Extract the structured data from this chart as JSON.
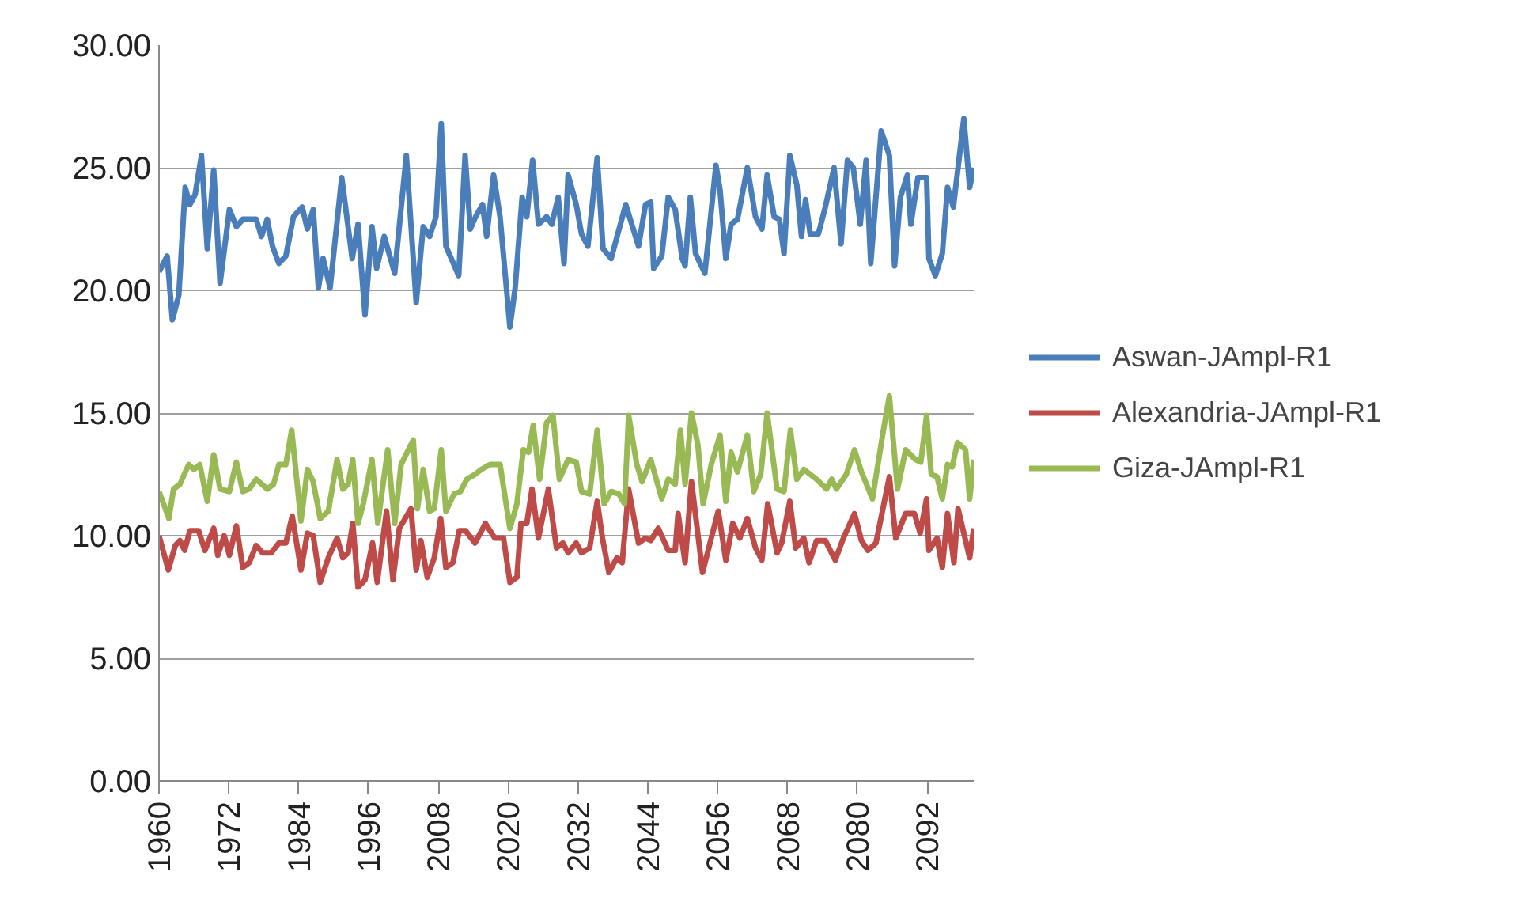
{
  "chart_data": {
    "type": "line",
    "xlim": [
      1960,
      2100
    ],
    "ylim": [
      0,
      30
    ],
    "xticks": [
      1960,
      1972,
      1984,
      1996,
      2008,
      2020,
      2032,
      2044,
      2056,
      2068,
      2080,
      2092
    ],
    "yticks": [
      {
        "value": 0,
        "label": "0.00"
      },
      {
        "value": 5,
        "label": "5.00"
      },
      {
        "value": 10,
        "label": "10.00"
      },
      {
        "value": 15,
        "label": "15.00"
      },
      {
        "value": 20,
        "label": "20.00"
      },
      {
        "value": 25,
        "label": "25.00"
      },
      {
        "value": 30,
        "label": "30.00"
      }
    ],
    "grid": "y",
    "legend": "right",
    "line_style": "solid",
    "marker": "none",
    "series": [
      {
        "name": "Aswan-JAmpl-R1",
        "color": "#4a7ebb",
        "x": [
          1960,
          1961.4,
          1962.3,
          1963.4,
          1964.5,
          1965.3,
          1966.2,
          1967.3,
          1968.3,
          1969.4,
          1970.5,
          1972.1,
          1973.3,
          1974.4,
          1976.7,
          1977.6,
          1978.6,
          1979.5,
          1980.6,
          1981.8,
          1983.1,
          1984.6,
          1985.5,
          1986.5,
          1987.4,
          1988.2,
          1989.4,
          1991.4,
          1993.2,
          1994.2,
          1995.4,
          1996.6,
          1997.4,
          1998.7,
          2000.5,
          2002.5,
          2004.2,
          2005.4,
          2006.5,
          2007.6,
          2008.5,
          2009.3,
          2011.5,
          2012.6,
          2013.5,
          2014.4,
          2015.6,
          2016.3,
          2017.5,
          2018.6,
          2020.3,
          2021.2,
          2022.4,
          2023.2,
          2024.2,
          2025.2,
          2026.6,
          2027.5,
          2028.6,
          2029.6,
          2030.3,
          2031.7,
          2032.6,
          2033.7,
          2035.3,
          2036.3,
          2037.7,
          2040.2,
          2042.4,
          2043.6,
          2044.5,
          2045.0,
          2046.4,
          2047.5,
          2048.7,
          2049.9,
          2050.4,
          2051.3,
          2052.2,
          2053.8,
          2055.7,
          2056.4,
          2057.4,
          2058.3,
          2059.4,
          2061.1,
          2062.5,
          2063.6,
          2064.5,
          2065.7,
          2066.6,
          2067.4,
          2068.4,
          2069.6,
          2070.4,
          2071.1,
          2071.9,
          2073.3,
          2074.5,
          2076.0,
          2077.2,
          2078.3,
          2079.3,
          2080.5,
          2081.5,
          2082.3,
          2084.1,
          2085.5,
          2086.4,
          2087.4,
          2088.6,
          2089.2,
          2090.4,
          2091.9,
          2092.3,
          2093.4,
          2094.6,
          2095.5,
          2096.5,
          2098.3,
          2099.3,
          2100
        ],
        "values": [
          20.75,
          21.4,
          18.8,
          19.8,
          24.2,
          23.5,
          23.9,
          25.5,
          21.7,
          24.9,
          20.3,
          23.3,
          22.6,
          22.9,
          22.9,
          22.2,
          22.9,
          21.8,
          21.1,
          21.4,
          23.0,
          23.4,
          22.5,
          23.3,
          20.1,
          21.3,
          20.1,
          24.6,
          21.3,
          22.7,
          19.0,
          22.6,
          20.9,
          22.2,
          20.7,
          25.5,
          19.5,
          22.6,
          22.2,
          23.0,
          26.8,
          21.8,
          20.6,
          25.5,
          22.5,
          23.0,
          23.5,
          22.2,
          24.7,
          23.0,
          18.5,
          20.1,
          23.8,
          23.0,
          25.3,
          22.7,
          23.0,
          22.7,
          23.8,
          21.1,
          24.7,
          23.5,
          22.3,
          21.8,
          25.4,
          21.7,
          21.3,
          23.5,
          21.8,
          23.5,
          23.6,
          20.9,
          21.4,
          23.8,
          23.3,
          21.3,
          21.0,
          23.8,
          21.5,
          20.7,
          25.1,
          24.1,
          21.3,
          22.7,
          22.9,
          25.0,
          23.0,
          22.5,
          24.7,
          23.0,
          22.9,
          21.5,
          25.5,
          24.3,
          22.2,
          23.7,
          22.3,
          22.3,
          23.4,
          25.0,
          21.9,
          25.3,
          25.0,
          22.7,
          25.3,
          21.1,
          26.5,
          25.5,
          21.0,
          23.8,
          24.7,
          22.7,
          24.6,
          24.6,
          21.3,
          20.6,
          21.5,
          24.2,
          23.4,
          27.0,
          24.2,
          25.0
        ]
      },
      {
        "name": "Alexandria-JAmpl-R1",
        "color": "#be4b48",
        "x": [
          1960,
          1961.6,
          1962.8,
          1963.6,
          1964.4,
          1965.3,
          1966.8,
          1967.9,
          1969.4,
          1970.1,
          1971.2,
          1972.1,
          1973.3,
          1974.4,
          1975.5,
          1976.7,
          1977.8,
          1979.3,
          1980.6,
          1981.8,
          1982.9,
          1984.4,
          1985.5,
          1986.5,
          1987.7,
          1989.1,
          1990.6,
          1991.6,
          1992.5,
          1993.3,
          1994.2,
          1995.4,
          1996.7,
          1997.5,
          1999.1,
          2000.2,
          2001.3,
          2003.3,
          2004.2,
          2005.0,
          2006.1,
          2007.3,
          2008.4,
          2009.3,
          2010.5,
          2011.6,
          2012.7,
          2014.3,
          2016.1,
          2017.7,
          2019.2,
          2020.3,
          2021.5,
          2022.2,
          2023.2,
          2024.1,
          2025.2,
          2026.9,
          2028.3,
          2029.4,
          2030.3,
          2031.7,
          2032.6,
          2034.0,
          2035.3,
          2036.2,
          2037.3,
          2038.7,
          2039.6,
          2040.7,
          2042.4,
          2043.6,
          2044.5,
          2045.8,
          2047.5,
          2048.7,
          2049.2,
          2050.4,
          2051.5,
          2053.4,
          2054.9,
          2056.1,
          2057.4,
          2058.6,
          2059.8,
          2061.1,
          2062.5,
          2063.6,
          2064.6,
          2066.2,
          2067.0,
          2068.4,
          2069.4,
          2070.8,
          2071.7,
          2073.0,
          2074.5,
          2076.2,
          2077.6,
          2079.5,
          2080.7,
          2081.8,
          2083.2,
          2085.5,
          2086.6,
          2088.3,
          2089.8,
          2090.8,
          2091.9,
          2092.3,
          2093.7,
          2094.6,
          2095.5,
          2096.6,
          2097.3,
          2099.3,
          2100
        ],
        "values": [
          10.0,
          8.6,
          9.6,
          9.8,
          9.4,
          10.2,
          10.2,
          9.4,
          10.3,
          9.2,
          10.0,
          9.2,
          10.4,
          8.7,
          8.9,
          9.6,
          9.3,
          9.3,
          9.7,
          9.7,
          10.8,
          8.6,
          10.1,
          10.0,
          8.1,
          9.1,
          9.9,
          9.1,
          9.3,
          10.5,
          7.9,
          8.2,
          9.7,
          8.1,
          11.0,
          8.2,
          10.3,
          11.1,
          8.6,
          9.8,
          8.3,
          9.1,
          10.7,
          8.7,
          8.9,
          10.2,
          10.2,
          9.7,
          10.5,
          9.9,
          9.9,
          8.1,
          8.3,
          10.5,
          10.5,
          11.9,
          9.9,
          11.9,
          9.5,
          9.7,
          9.3,
          9.7,
          9.3,
          9.5,
          11.4,
          9.9,
          8.5,
          9.1,
          8.9,
          11.9,
          9.7,
          9.9,
          9.8,
          10.3,
          9.4,
          9.4,
          10.9,
          8.9,
          12.2,
          8.5,
          9.9,
          11.0,
          9.0,
          10.5,
          9.9,
          10.7,
          9.5,
          9.0,
          11.3,
          9.3,
          9.7,
          11.4,
          9.5,
          9.9,
          8.9,
          9.8,
          9.8,
          9.0,
          9.9,
          10.9,
          9.8,
          9.4,
          9.7,
          12.4,
          9.9,
          10.9,
          10.9,
          10.1,
          11.5,
          9.4,
          9.9,
          8.7,
          10.9,
          8.9,
          11.1,
          9.1,
          10.3
        ]
      },
      {
        "name": "Giza-JAmpl-R1",
        "color": "#98b954",
        "x": [
          1960,
          1961.7,
          1962.5,
          1963.6,
          1965.1,
          1966.0,
          1967.0,
          1968.3,
          1969.4,
          1970.5,
          1972.1,
          1973.3,
          1974.4,
          1975.5,
          1976.7,
          1978.6,
          1979.7,
          1980.6,
          1981.8,
          1982.8,
          1984.4,
          1985.5,
          1986.5,
          1987.7,
          1989.1,
          1990.6,
          1991.6,
          1992.5,
          1993.3,
          1994.2,
          1995.1,
          1996.6,
          1997.6,
          1999.3,
          2000.5,
          2001.6,
          2003.7,
          2004.4,
          2005.4,
          2006.5,
          2007.3,
          2008.5,
          2009.3,
          2010.7,
          2011.8,
          2012.9,
          2014.3,
          2015.4,
          2016.9,
          2018.6,
          2020.3,
          2021.5,
          2022.6,
          2023.5,
          2024.3,
          2025.4,
          2026.6,
          2027.7,
          2028.8,
          2030.3,
          2031.7,
          2032.6,
          2034.0,
          2035.3,
          2036.5,
          2037.7,
          2039.0,
          2040.0,
          2040.7,
          2042.1,
          2043.0,
          2044.5,
          2046.4,
          2047.5,
          2048.7,
          2049.6,
          2050.4,
          2051.5,
          2052.6,
          2053.5,
          2054.9,
          2056.4,
          2057.4,
          2058.3,
          2059.4,
          2061.1,
          2062.2,
          2063.4,
          2064.5,
          2066.2,
          2067.4,
          2068.5,
          2069.6,
          2070.8,
          2073.0,
          2074.7,
          2075.6,
          2076.4,
          2078.1,
          2079.5,
          2080.7,
          2082.6,
          2084.4,
          2085.5,
          2086.9,
          2088.3,
          2090.0,
          2090.9,
          2091.9,
          2092.7,
          2093.7,
          2094.6,
          2095.5,
          2096.3,
          2097.2,
          2098.6,
          2099.3,
          2100
        ],
        "values": [
          11.8,
          10.7,
          11.9,
          12.1,
          12.9,
          12.7,
          12.9,
          11.4,
          13.3,
          11.9,
          11.8,
          13.0,
          11.8,
          11.9,
          12.3,
          11.9,
          12.1,
          12.9,
          12.9,
          14.3,
          10.6,
          12.7,
          12.2,
          10.7,
          11.0,
          13.1,
          11.9,
          12.1,
          13.1,
          10.5,
          11.3,
          13.1,
          10.5,
          13.5,
          10.5,
          12.9,
          13.9,
          11.1,
          12.7,
          11.0,
          11.1,
          13.5,
          11.0,
          11.7,
          11.8,
          12.3,
          12.5,
          12.7,
          12.9,
          12.9,
          10.3,
          11.3,
          13.5,
          13.4,
          14.5,
          12.3,
          14.6,
          14.9,
          12.3,
          13.1,
          13.0,
          11.8,
          11.7,
          14.3,
          11.3,
          11.8,
          11.7,
          11.3,
          14.9,
          12.9,
          12.2,
          13.1,
          11.5,
          12.3,
          12.1,
          14.3,
          12.1,
          15.0,
          13.7,
          11.3,
          12.9,
          14.1,
          11.4,
          13.4,
          12.6,
          14.1,
          11.8,
          12.5,
          15.0,
          11.9,
          11.8,
          14.3,
          12.3,
          12.7,
          12.3,
          11.9,
          12.3,
          11.9,
          12.5,
          13.5,
          12.6,
          11.5,
          14.2,
          15.7,
          11.9,
          13.5,
          13.1,
          13.0,
          14.9,
          12.5,
          12.4,
          11.5,
          12.9,
          12.8,
          13.8,
          13.5,
          11.5,
          13.1
        ]
      }
    ]
  }
}
